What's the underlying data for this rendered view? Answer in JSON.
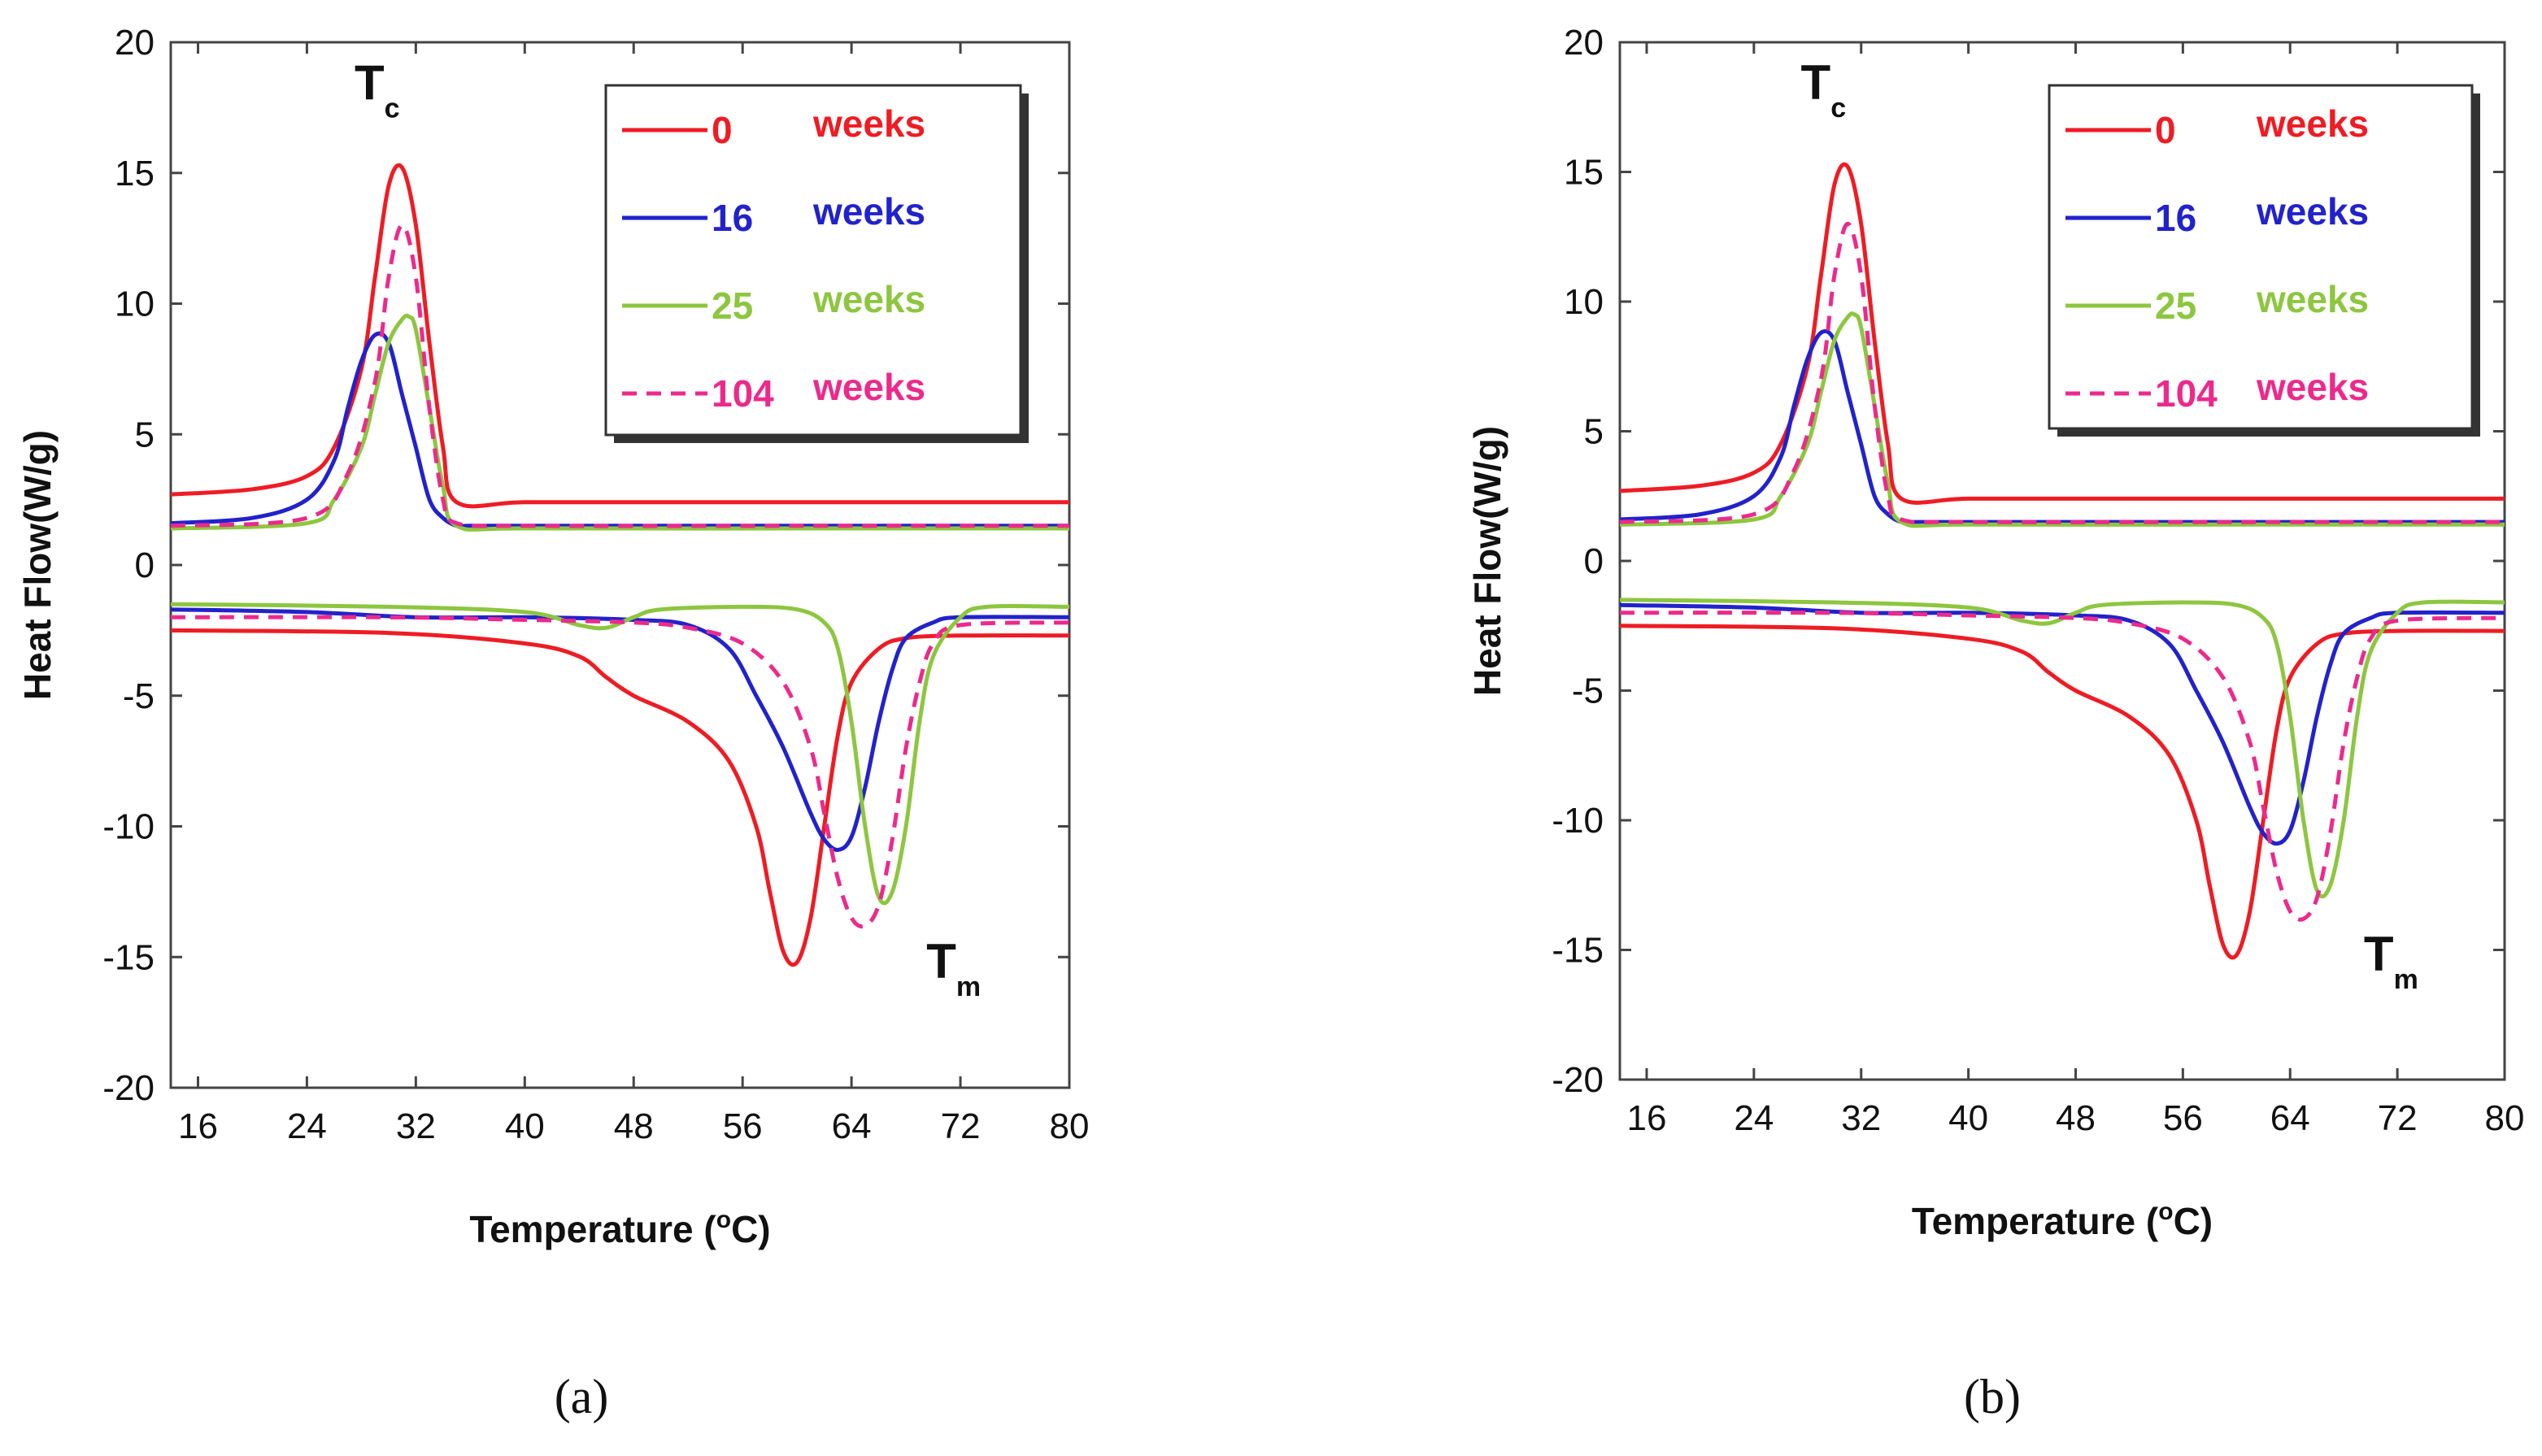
{
  "chart_data": [
    {
      "type": "line",
      "panel_caption": "(a)",
      "xlabel": "Temperature (",
      "xlabel_sup": "o",
      "xlabel_end": "C)",
      "ylabel": "Heat Flow(W/g)",
      "xlim": [
        14,
        80
      ],
      "ylim": [
        -20,
        20
      ],
      "xticks": [
        "16",
        "24",
        "32",
        "40",
        "48",
        "56",
        "64",
        "72",
        "80"
      ],
      "yticks": [
        "20",
        "15",
        "10",
        "5",
        "0",
        "-5",
        "-10",
        "-15",
        "-20"
      ],
      "annotations": [
        {
          "name": "tc",
          "text": "T",
          "sub": "c",
          "x": 27.5,
          "y": 17.8
        },
        {
          "name": "tm",
          "text": "T",
          "sub": "m",
          "x": 69.5,
          "y": -15.8
        }
      ],
      "legend": {
        "position": "top-right",
        "suffix": "weeks"
      },
      "series": [
        {
          "name": "0",
          "color": "#ee1c24",
          "dash": "",
          "cooling": {
            "x": [
              14,
              20,
              24,
              26,
              28,
              29,
              30,
              31,
              32,
              33,
              34,
              35,
              40,
              50,
              60,
              70,
              80
            ],
            "y": [
              2.7,
              2.9,
              3.4,
              4.5,
              7.5,
              11.0,
              14.5,
              15.2,
              13.0,
              8.5,
              4.5,
              2.4,
              2.4,
              2.4,
              2.4,
              2.4,
              2.4
            ]
          },
          "heating": {
            "x": [
              14,
              30,
              40,
              44,
              46,
              48,
              52,
              55,
              57,
              58,
              59,
              60,
              61,
              62,
              63,
              64,
              66,
              68,
              72,
              80
            ],
            "y": [
              -2.5,
              -2.6,
              -3.0,
              -3.5,
              -4.3,
              -5.0,
              -6.0,
              -7.5,
              -10.0,
              -12.5,
              -14.8,
              -15.2,
              -13.5,
              -10.0,
              -6.5,
              -4.5,
              -3.2,
              -2.8,
              -2.7,
              -2.7
            ]
          }
        },
        {
          "name": "16",
          "color": "#2222cc",
          "dash": "",
          "cooling": {
            "x": [
              14,
              20,
              24,
              26,
              27,
              28,
              29,
              30,
              31,
              32,
              33,
              34,
              35,
              36,
              40,
              50,
              60,
              70,
              80
            ],
            "y": [
              1.6,
              1.8,
              2.5,
              4.0,
              6.0,
              7.8,
              8.8,
              8.5,
              6.5,
              4.5,
              2.5,
              1.8,
              1.5,
              1.5,
              1.5,
              1.5,
              1.5,
              1.5,
              1.5
            ]
          },
          "heating": {
            "x": [
              14,
              24,
              32,
              40,
              48,
              52,
              55,
              57,
              59,
              61,
              62,
              63,
              64,
              65,
              66,
              67,
              68,
              70,
              72,
              80
            ],
            "y": [
              -1.7,
              -1.8,
              -2.0,
              -2.0,
              -2.1,
              -2.3,
              -3.2,
              -5.0,
              -7.0,
              -9.5,
              -10.5,
              -10.9,
              -10.4,
              -8.5,
              -6.0,
              -4.0,
              -2.8,
              -2.2,
              -2.0,
              -2.0
            ]
          }
        },
        {
          "name": "25",
          "color": "#8dc63f",
          "dash": "",
          "cooling": {
            "x": [
              14,
              24,
              26,
              28,
              29,
              30,
              31,
              31.5,
              32,
              33,
              34,
              35,
              40,
              60,
              80
            ],
            "y": [
              1.4,
              1.6,
              2.5,
              4.5,
              6.5,
              8.5,
              9.4,
              9.5,
              9.0,
              6.0,
              3.0,
              1.5,
              1.4,
              1.4,
              1.4
            ]
          },
          "heating": {
            "x": [
              14,
              30,
              40,
              44,
              46,
              48,
              50,
              56,
              60,
              62,
              63,
              64,
              65,
              66,
              67,
              68,
              69,
              70,
              72,
              74,
              80
            ],
            "y": [
              -1.5,
              -1.6,
              -1.8,
              -2.3,
              -2.4,
              -2.0,
              -1.7,
              -1.6,
              -1.7,
              -2.2,
              -3.2,
              -6.0,
              -10.0,
              -12.7,
              -12.5,
              -10.0,
              -6.0,
              -3.5,
              -2.0,
              -1.6,
              -1.6
            ]
          }
        },
        {
          "name": "104",
          "color": "#ec2a8c",
          "dash": "18,12",
          "cooling": {
            "x": [
              14,
              24,
              27,
              29,
              30,
              31,
              32,
              33,
              34,
              35,
              40,
              60,
              80
            ],
            "y": [
              1.5,
              1.8,
              3.5,
              7.0,
              11.0,
              13.0,
              11.0,
              6.0,
              2.5,
              1.6,
              1.5,
              1.5,
              1.5
            ]
          },
          "heating": {
            "x": [
              14,
              30,
              40,
              48,
              52,
              56,
              59,
              61,
              62,
              63,
              64,
              65,
              66,
              67,
              68,
              69,
              70,
              72,
              80
            ],
            "y": [
              -2.0,
              -2.0,
              -2.1,
              -2.2,
              -2.4,
              -3.0,
              -4.5,
              -7.0,
              -9.5,
              -12.0,
              -13.5,
              -13.8,
              -13.0,
              -10.5,
              -7.0,
              -4.5,
              -3.0,
              -2.3,
              -2.2
            ]
          }
        }
      ]
    },
    {
      "type": "line",
      "panel_caption": "(b)",
      "xlabel": "Temperature (",
      "xlabel_sup": "o",
      "xlabel_end": "C)",
      "ylabel": "Heat Flow(W/g)",
      "xlim": [
        14,
        80
      ],
      "ylim": [
        -20,
        20
      ],
      "xticks": [
        "16",
        "24",
        "32",
        "40",
        "48",
        "56",
        "64",
        "72",
        "80"
      ],
      "yticks": [
        "20",
        "15",
        "10",
        "5",
        "0",
        "-5",
        "-10",
        "-15",
        "-20"
      ],
      "annotations": [
        {
          "name": "tc",
          "text": "T",
          "sub": "c",
          "x": 27.5,
          "y": 17.8
        },
        {
          "name": "tm",
          "text": "T",
          "sub": "m",
          "x": 69.5,
          "y": -15.8
        }
      ],
      "legend": {
        "position": "top-right",
        "suffix": "weeks"
      },
      "series": [
        {
          "name": "0",
          "color": "#ee1c24",
          "dash": "",
          "cooling": {
            "x": [
              14,
              20,
              24,
              26,
              28,
              29,
              30,
              31,
              32,
              33,
              34,
              35,
              40,
              50,
              60,
              70,
              80
            ],
            "y": [
              2.7,
              2.9,
              3.4,
              4.5,
              7.5,
              11.0,
              14.5,
              15.2,
              13.0,
              8.5,
              4.5,
              2.4,
              2.4,
              2.4,
              2.4,
              2.4,
              2.4
            ]
          },
          "heating": {
            "x": [
              14,
              30,
              40,
              44,
              46,
              48,
              52,
              55,
              57,
              58,
              59,
              60,
              61,
              62,
              63,
              64,
              66,
              68,
              72,
              80
            ],
            "y": [
              -2.5,
              -2.6,
              -3.0,
              -3.5,
              -4.3,
              -5.0,
              -6.0,
              -7.5,
              -10.0,
              -12.5,
              -14.8,
              -15.2,
              -13.5,
              -10.0,
              -6.5,
              -4.5,
              -3.2,
              -2.8,
              -2.7,
              -2.7
            ]
          }
        },
        {
          "name": "16",
          "color": "#2222cc",
          "dash": "",
          "cooling": {
            "x": [
              14,
              20,
              24,
              26,
              27,
              28,
              29,
              30,
              31,
              32,
              33,
              34,
              35,
              36,
              40,
              50,
              60,
              70,
              80
            ],
            "y": [
              1.6,
              1.8,
              2.5,
              4.0,
              6.0,
              7.8,
              8.8,
              8.5,
              6.5,
              4.5,
              2.5,
              1.8,
              1.5,
              1.5,
              1.5,
              1.5,
              1.5,
              1.5,
              1.5
            ]
          },
          "heating": {
            "x": [
              14,
              24,
              32,
              40,
              48,
              52,
              55,
              57,
              59,
              61,
              62,
              63,
              64,
              65,
              66,
              67,
              68,
              70,
              72,
              80
            ],
            "y": [
              -1.7,
              -1.8,
              -2.0,
              -2.0,
              -2.1,
              -2.3,
              -3.2,
              -5.0,
              -7.0,
              -9.5,
              -10.5,
              -10.9,
              -10.4,
              -8.5,
              -6.0,
              -4.0,
              -2.8,
              -2.2,
              -2.0,
              -2.0
            ]
          }
        },
        {
          "name": "25",
          "color": "#8dc63f",
          "dash": "",
          "cooling": {
            "x": [
              14,
              24,
              26,
              28,
              29,
              30,
              31,
              31.5,
              32,
              33,
              34,
              35,
              40,
              60,
              80
            ],
            "y": [
              1.4,
              1.6,
              2.5,
              4.5,
              6.5,
              8.5,
              9.4,
              9.5,
              9.0,
              6.0,
              3.0,
              1.5,
              1.4,
              1.4,
              1.4
            ]
          },
          "heating": {
            "x": [
              14,
              30,
              40,
              44,
              46,
              48,
              50,
              56,
              60,
              62,
              63,
              64,
              65,
              66,
              67,
              68,
              69,
              70,
              72,
              74,
              80
            ],
            "y": [
              -1.5,
              -1.6,
              -1.8,
              -2.3,
              -2.4,
              -2.0,
              -1.7,
              -1.6,
              -1.7,
              -2.2,
              -3.2,
              -6.0,
              -10.0,
              -12.7,
              -12.5,
              -10.0,
              -6.0,
              -3.5,
              -2.0,
              -1.6,
              -1.6
            ]
          }
        },
        {
          "name": "104",
          "color": "#ec2a8c",
          "dash": "18,12",
          "cooling": {
            "x": [
              14,
              24,
              27,
              29,
              30,
              31,
              32,
              33,
              34,
              35,
              40,
              60,
              80
            ],
            "y": [
              1.5,
              1.8,
              3.5,
              7.0,
              11.0,
              13.0,
              11.0,
              6.0,
              2.5,
              1.6,
              1.5,
              1.5,
              1.5
            ]
          },
          "heating": {
            "x": [
              14,
              30,
              40,
              48,
              52,
              56,
              59,
              61,
              62,
              63,
              64,
              65,
              66,
              67,
              68,
              69,
              70,
              72,
              80
            ],
            "y": [
              -2.0,
              -2.0,
              -2.1,
              -2.2,
              -2.4,
              -3.0,
              -4.5,
              -7.0,
              -9.5,
              -12.0,
              -13.5,
              -13.8,
              -13.0,
              -10.5,
              -7.0,
              -4.5,
              -3.0,
              -2.3,
              -2.2
            ]
          }
        }
      ]
    }
  ]
}
